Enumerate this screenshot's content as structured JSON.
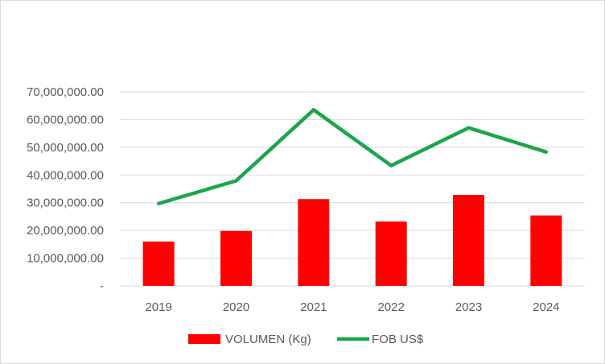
{
  "chart_data": {
    "type": "bar",
    "title": "",
    "xlabel": "",
    "ylabel": "",
    "categories": [
      "2019",
      "2020",
      "2021",
      "2022",
      "2023",
      "2024"
    ],
    "ylim": [
      0,
      70000000
    ],
    "yticks": [
      0,
      10000000,
      20000000,
      30000000,
      40000000,
      50000000,
      60000000,
      70000000
    ],
    "ytick_labels": [
      "-",
      "10,000,000.00",
      "20,000,000.00",
      "30,000,000.00",
      "40,000,000.00",
      "50,000,000.00",
      "60,000,000.00",
      "70,000,000.00"
    ],
    "grid": true,
    "legend_position": "bottom",
    "series": [
      {
        "name": "VOLUMEN (Kg)",
        "type": "bar",
        "color": "#ff0000",
        "values": [
          16000000,
          19800000,
          31300000,
          23200000,
          32800000,
          25400000
        ]
      },
      {
        "name": "FOB US$",
        "type": "line",
        "color": "#1aa64a",
        "values": [
          29700000,
          37900000,
          63500000,
          43400000,
          57000000,
          48300000
        ]
      }
    ]
  }
}
